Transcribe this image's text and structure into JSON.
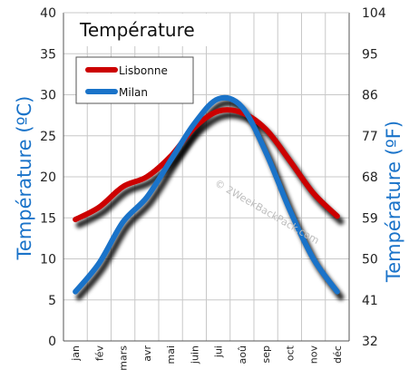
{
  "chart_data": {
    "type": "line",
    "title": "Température",
    "ylabel_left": "Température  (ºC)",
    "ylabel_right": "Température  (ºF)",
    "watermark": "© 2WeekBackPack.com",
    "categories": [
      "jan",
      "fév",
      "mars",
      "avr",
      "mai",
      "juin",
      "jui",
      "aoû",
      "sep",
      "oct",
      "nov",
      "déc"
    ],
    "ylim": [
      0,
      40
    ],
    "yticks_left": [
      "0",
      "5",
      "10",
      "15",
      "20",
      "25",
      "30",
      "35",
      "40"
    ],
    "yticks_right": [
      "32",
      "41",
      "50",
      "59",
      "68",
      "77",
      "86",
      "95",
      "104"
    ],
    "grid": true,
    "legend_position": "top-left",
    "series": [
      {
        "name": "Lisbonne",
        "color": "#cc0000",
        "values": [
          14.8,
          16.3,
          18.8,
          20.0,
          22.5,
          26.0,
          28.0,
          27.8,
          25.8,
          22.0,
          18.0,
          15.2
        ]
      },
      {
        "name": "Milan",
        "color": "#1a73c9",
        "values": [
          6.0,
          9.5,
          14.5,
          17.5,
          22.0,
          26.5,
          29.5,
          28.5,
          23.0,
          16.0,
          10.0,
          6.0
        ]
      }
    ],
    "axis_colors": {
      "left_label": "#1a73c9",
      "right_label": "#1a73c9"
    }
  }
}
